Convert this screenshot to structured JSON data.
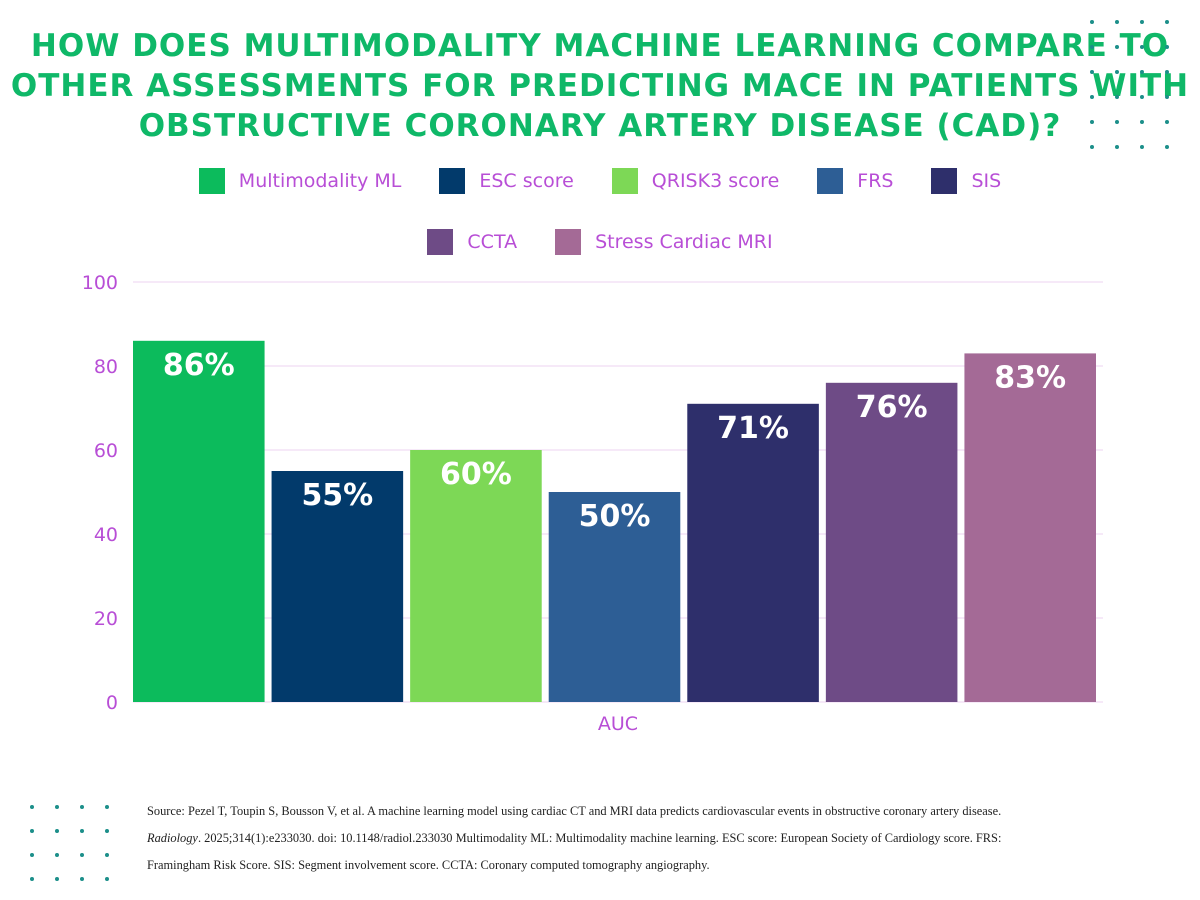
{
  "title": "HOW DOES MULTIMODALITY MACHINE LEARNING COMPARE TO OTHER ASSESSMENTS FOR PREDICTING MACE IN PATIENTS WITH OBSTRUCTIVE CORONARY ARTERY DISEASE (CAD)?",
  "chart_data": {
    "type": "bar",
    "title": "HOW DOES MULTIMODALITY MACHINE LEARNING COMPARE TO OTHER ASSESSMENTS FOR PREDICTING MACE IN PATIENTS WITH OBSTRUCTIVE CORONARY ARTERY DISEASE (CAD)?",
    "categories": [
      "AUC"
    ],
    "xlabel": "AUC",
    "ylabel": "",
    "ylim": [
      0,
      100
    ],
    "yticks": [
      0,
      20,
      40,
      60,
      80,
      100
    ],
    "grid": true,
    "legend_position": "top",
    "series": [
      {
        "name": "Multimodality ML",
        "values": [
          86
        ],
        "label": "86%",
        "color": "#0cbb5c"
      },
      {
        "name": "ESC score",
        "values": [
          55
        ],
        "label": "55%",
        "color": "#023a6b"
      },
      {
        "name": "QRISK3 score",
        "values": [
          60
        ],
        "label": "60%",
        "color": "#7dd856"
      },
      {
        "name": "FRS",
        "values": [
          50
        ],
        "label": "50%",
        "color": "#2d5e95"
      },
      {
        "name": "SIS",
        "values": [
          71
        ],
        "label": "71%",
        "color": "#2e2f6b"
      },
      {
        "name": "CCTA",
        "values": [
          76
        ],
        "label": "76%",
        "color": "#6e4b86"
      },
      {
        "name": "Stress Cardiac MRI",
        "values": [
          83
        ],
        "label": "83%",
        "color": "#a46a96"
      }
    ]
  },
  "source": {
    "line1": "Source: Pezel T, Toupin S, Bousson V, et al. A machine learning model using cardiac CT and MRI data predicts cardiovascular events in obstructive coronary artery disease.",
    "journal": "Radiology",
    "line2_rest": ". 2025;314(1):e233030. doi: 10.1148/radiol.233030  Multimodality ML: Multimodality machine learning. ESC score: European Society of Cardiology score.  FRS:",
    "line3": "Framingham Risk Score.  SIS: Segment involvement score. CCTA: Coronary computed tomography angiography."
  },
  "colors": {
    "title": "#0fb868",
    "axis_text": "#b84ed6",
    "grid": "#f3e2f6",
    "dots": "#1c8f8a"
  }
}
